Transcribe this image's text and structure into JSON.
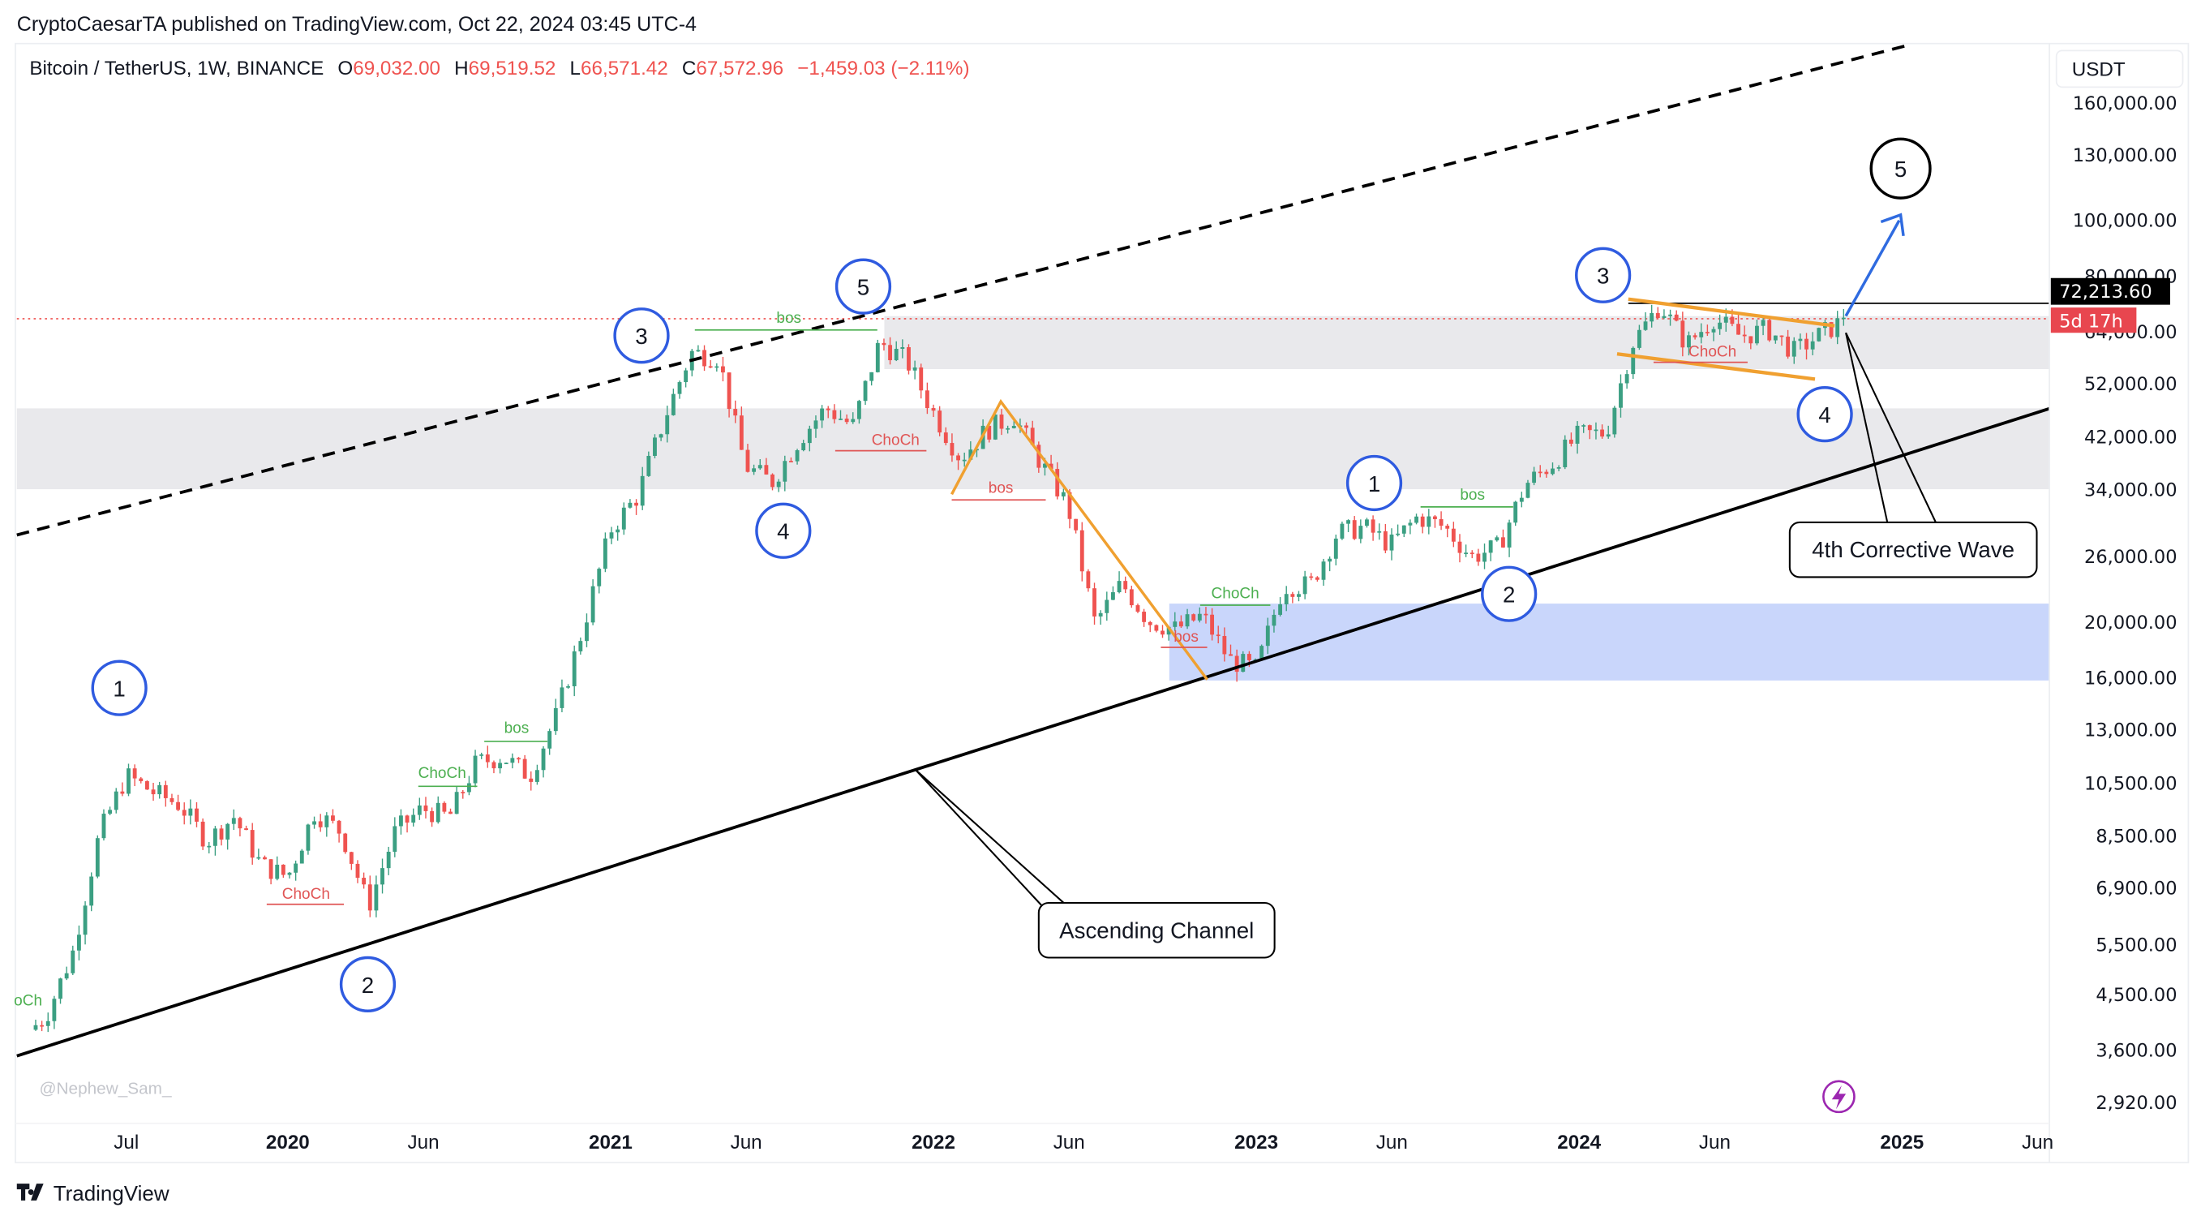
{
  "publisher_line": "CryptoCaesarTA published on TradingView.com, Oct 22, 2024 03:45 UTC-4",
  "legend": {
    "symbol": "Bitcoin / TetherUS, 1W, BINANCE",
    "o_label": "O",
    "o": "69,032.00",
    "h_label": "H",
    "h": "69,519.52",
    "l_label": "L",
    "l": "66,571.42",
    "c_label": "C",
    "c": "67,572.96",
    "change": "−1,459.03 (−2.11%)"
  },
  "currency_button": "USDT",
  "price_tag": "72,213.60",
  "countdown_tag": "5d 17h",
  "watermark": "@Nephew_Sam_",
  "logo_text": "TradingView",
  "colors": {
    "up": "#3b9f82",
    "down": "#ef5350",
    "wave_circle": "#2f5be0",
    "orange": "#f0a030",
    "demand_zone": "#c9d6fb",
    "grey_zone": "#e9e9ec"
  },
  "chart_data": {
    "type": "candlestick",
    "title": "",
    "scale": "log",
    "ylim": [
      2920,
      160000
    ],
    "y_ticks": [
      "160,000.00",
      "130,000.00",
      "100,000.00",
      "80,000.00",
      "64,000.00",
      "52,000.00",
      "42,000.00",
      "34,000.00",
      "26,000.00",
      "20,000.00",
      "16,000.00",
      "13,000.00",
      "10,500.00",
      "8,500.00",
      "6,900.00",
      "5,500.00",
      "4,500.00",
      "3,600.00",
      "2,920.00"
    ],
    "x_ticks": [
      {
        "label": "Jul",
        "bold": false
      },
      {
        "label": "2020",
        "bold": true
      },
      {
        "label": "Jun",
        "bold": false
      },
      {
        "label": "2021",
        "bold": true
      },
      {
        "label": "Jun",
        "bold": false
      },
      {
        "label": "2022",
        "bold": true
      },
      {
        "label": "Jun",
        "bold": false
      },
      {
        "label": "2023",
        "bold": true
      },
      {
        "label": "Jun",
        "bold": false
      },
      {
        "label": "2024",
        "bold": true
      },
      {
        "label": "Jun",
        "bold": false
      },
      {
        "label": "2025",
        "bold": true
      },
      {
        "label": "Jun",
        "bold": false
      }
    ],
    "monthly_closes_approx": {
      "start": "2019-03",
      "values": [
        4100,
        5300,
        8550,
        10800,
        10100,
        9600,
        8300,
        9150,
        7550,
        7200,
        9350,
        8600,
        6400,
        8650,
        9450,
        9140,
        11350,
        11650,
        10780,
        13800,
        19700,
        28900,
        33100,
        45100,
        58800,
        57700,
        37300,
        35000,
        41500,
        47100,
        43800,
        61300,
        57000,
        46200,
        38500,
        43200,
        45500,
        37700,
        31800,
        19900,
        23300,
        20050,
        19400,
        20500,
        17150,
        16550,
        23100,
        23150,
        28500,
        29250,
        27200,
        30450,
        29200,
        25950,
        26950,
        34650,
        37700,
        42300,
        42600,
        61200,
        71300,
        60700,
        67500,
        62700,
        64600,
        58970,
        63300,
        67570
      ]
    },
    "last_close": 67572.96,
    "horizontal_levels": [
      72213.6
    ],
    "annotations": {
      "wave_labels": [
        "1",
        "2",
        "3",
        "4",
        "5",
        "1",
        "2",
        "3",
        "4",
        "5"
      ],
      "structure_labels": [
        "bos",
        "ChoCh",
        "bos",
        "ChoCh",
        "bos",
        "ChoCh",
        "ChoCh",
        "bos",
        "bos",
        "ChoCh",
        "oCh"
      ],
      "callouts": [
        "Ascending Channel",
        "4th Corrective Wave"
      ]
    }
  }
}
